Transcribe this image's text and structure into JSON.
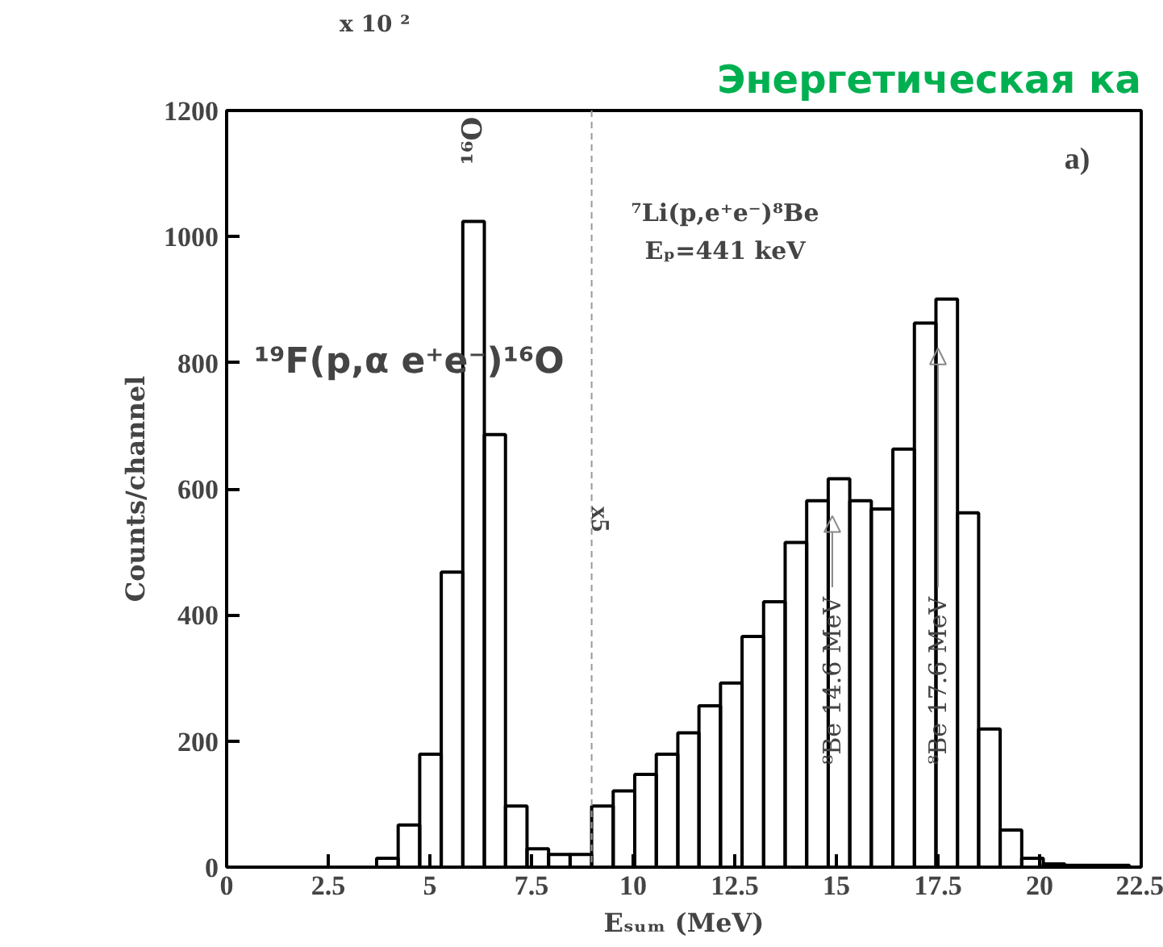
{
  "chart_data": {
    "type": "histogram",
    "title": "Энергетическая ка",
    "xlabel": "Eₛᵤₘ (MeV)",
    "ylabel": "Counts/channel",
    "bins": [
      3.69,
      4.22,
      4.75,
      5.28,
      5.81,
      6.34,
      6.86,
      7.39,
      7.92,
      8.45,
      8.98,
      9.51,
      10.04,
      10.57,
      11.1,
      11.62,
      12.15,
      12.68,
      13.21,
      13.74,
      14.27,
      14.8,
      15.33,
      15.86,
      16.39,
      16.92,
      17.45,
      17.98,
      18.5,
      19.03,
      19.56,
      20.09,
      20.62,
      21.15,
      21.68,
      22.21
    ],
    "values": [
      14,
      67,
      179,
      468,
      1024,
      686,
      97,
      29,
      20,
      20,
      97,
      121,
      147,
      179,
      213,
      256,
      292,
      366,
      421,
      515,
      581,
      616,
      581,
      568,
      663,
      863,
      901,
      562,
      219,
      59,
      14,
      5,
      3,
      3,
      3
    ],
    "color": "#000000",
    "xlim": [
      0,
      22.5
    ],
    "ylim": [
      0,
      1200
    ],
    "xticks": [
      0,
      2.5,
      5,
      7.5,
      10,
      12.5,
      15,
      17.5,
      20,
      22.5
    ],
    "yticks": [
      0,
      200,
      400,
      600,
      800,
      1000,
      1200
    ],
    "grid": false,
    "ref_lines": [
      {
        "axis": "x",
        "value": 8.98,
        "label": "x5",
        "line_style": "dashed",
        "color": "#999999"
      }
    ],
    "annotations": [
      "x 10 ²",
      "¹⁶O",
      "a)",
      "⁷Li(p,e⁺e⁻)⁸Be",
      "Eₚ=441 keV",
      "¹⁹F(p,α e⁺e⁻)¹⁶O",
      {
        "text": "⁸Be 14.6 MeV",
        "x": 14.9,
        "y": 557
      },
      {
        "text": "⁸Be 17.6 MeV",
        "x": 17.5,
        "y": 823
      }
    ]
  }
}
